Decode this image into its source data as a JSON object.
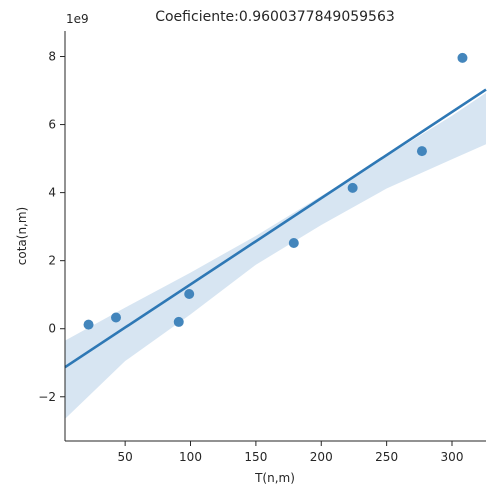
{
  "chart_data": {
    "type": "scatter",
    "title": "Coeficiente:0.9600377849059563",
    "xlabel": "T(n,m)",
    "ylabel": "cota(n,m)",
    "y_offset_text": "1e9",
    "xlim": [
      4,
      326
    ],
    "ylim": [
      -3.3,
      8.75
    ],
    "x_ticks": [
      50,
      100,
      150,
      200,
      250,
      300
    ],
    "y_ticks": [
      -2,
      0,
      2,
      4,
      6,
      8
    ],
    "x_tick_labels": [
      "50",
      "100",
      "150",
      "200",
      "250",
      "300"
    ],
    "y_tick_labels": [
      "−2",
      "0",
      "2",
      "4",
      "6",
      "8"
    ],
    "points": {
      "x": [
        22,
        43,
        91,
        99,
        179,
        224,
        277,
        308
      ],
      "y": [
        0.12,
        0.33,
        0.2,
        1.02,
        2.52,
        4.14,
        5.22,
        7.96
      ]
    },
    "regression": {
      "x": [
        4,
        326
      ],
      "y": [
        -1.13,
        7.03
      ]
    },
    "confidence_band": {
      "x": [
        4,
        50,
        100,
        150,
        200,
        250,
        300,
        326
      ],
      "upper": [
        -0.35,
        0.62,
        1.65,
        2.73,
        3.9,
        5.07,
        6.26,
        6.93
      ],
      "lower": [
        -2.65,
        -0.95,
        0.42,
        1.88,
        3.05,
        4.12,
        4.98,
        5.42
      ]
    },
    "colors": {
      "points": "#3a7fb8",
      "line": "#2e78b5",
      "band": "#c9dcee"
    },
    "grid": false,
    "legend": "none"
  }
}
